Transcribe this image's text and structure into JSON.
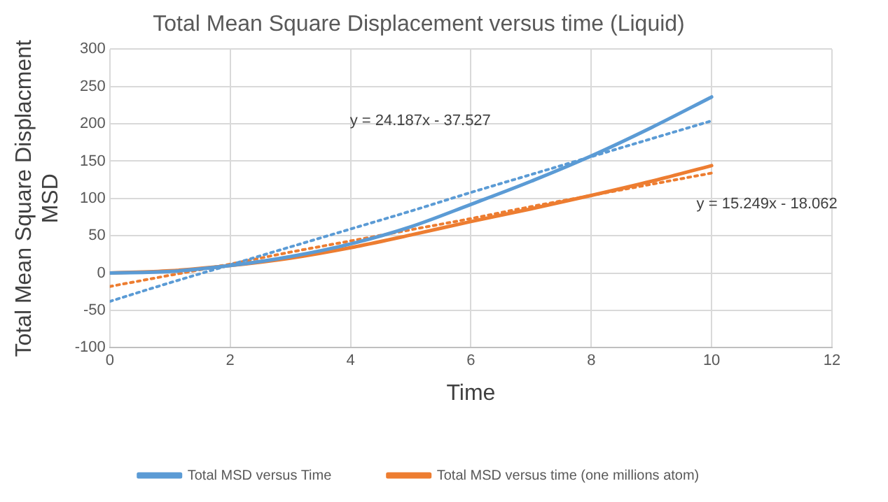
{
  "chart_data": {
    "type": "line",
    "title": "Total Mean Square Displacement versus time (Liquid)",
    "xlabel": "Time",
    "ylabel": "Total Mean Square Displacment\nMSD",
    "x": [
      0,
      1,
      2,
      3,
      4,
      5,
      6,
      7,
      8,
      9,
      10
    ],
    "series": [
      {
        "name": "Total MSD versus Time",
        "color": "#5b9bd5",
        "values": [
          0,
          2,
          10,
          22,
          39,
          62,
          92,
          123,
          157,
          195,
          236
        ]
      },
      {
        "name": "Total MSD versus time (one millions atom)",
        "color": "#ed7d31",
        "values": [
          0,
          3,
          10,
          20,
          34,
          51,
          69,
          86,
          104,
          123,
          144
        ]
      },
      {
        "type": "line",
        "color": "#5b9bd5",
        "values": [
          -38,
          -13,
          11,
          35,
          59,
          83,
          108,
          132,
          156,
          180,
          204
        ],
        "line_style": "dotted"
      },
      {
        "type": "line",
        "color": "#ed7d31",
        "values": [
          -18,
          -3,
          12,
          28,
          43,
          58,
          73,
          89,
          104,
          119,
          134
        ],
        "line_style": "dotted"
      }
    ],
    "xlim": [
      0,
      12
    ],
    "xticks": [
      0,
      2,
      4,
      6,
      8,
      10,
      12
    ],
    "ylim": [
      -100,
      300
    ],
    "yticks": [
      -100,
      -50,
      0,
      50,
      100,
      150,
      200,
      250,
      300
    ],
    "grid": true,
    "legend": "bottom",
    "marker": "none",
    "line_style": "solid",
    "annotations": [
      "y = 24.187x - 37.527",
      "y = 15.249x - 18.062"
    ]
  }
}
